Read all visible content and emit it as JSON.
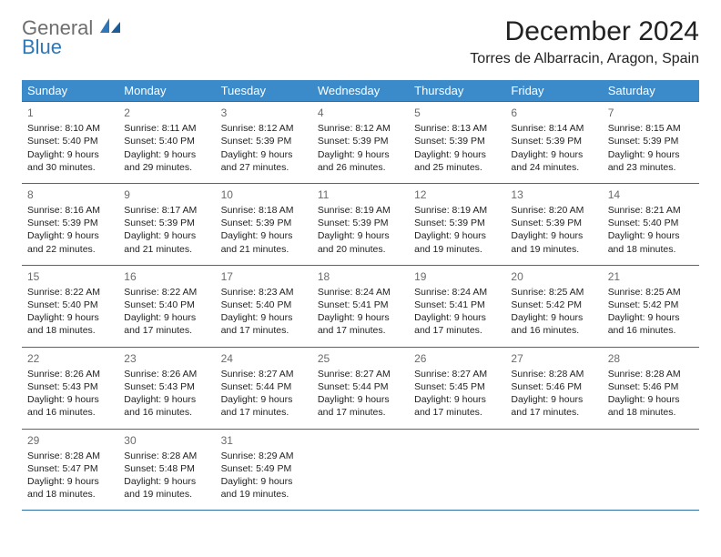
{
  "logo": {
    "general": "General",
    "blue": "Blue"
  },
  "title": "December 2024",
  "location": "Torres de Albarracin, Aragon, Spain",
  "header_bg": "#3b8bca",
  "rule_color": "#2f6fa5",
  "dow": [
    "Sunday",
    "Monday",
    "Tuesday",
    "Wednesday",
    "Thursday",
    "Friday",
    "Saturday"
  ],
  "weeks": [
    [
      {
        "n": "1",
        "sr": "Sunrise: 8:10 AM",
        "ss": "Sunset: 5:40 PM",
        "d1": "Daylight: 9 hours",
        "d2": "and 30 minutes."
      },
      {
        "n": "2",
        "sr": "Sunrise: 8:11 AM",
        "ss": "Sunset: 5:40 PM",
        "d1": "Daylight: 9 hours",
        "d2": "and 29 minutes."
      },
      {
        "n": "3",
        "sr": "Sunrise: 8:12 AM",
        "ss": "Sunset: 5:39 PM",
        "d1": "Daylight: 9 hours",
        "d2": "and 27 minutes."
      },
      {
        "n": "4",
        "sr": "Sunrise: 8:12 AM",
        "ss": "Sunset: 5:39 PM",
        "d1": "Daylight: 9 hours",
        "d2": "and 26 minutes."
      },
      {
        "n": "5",
        "sr": "Sunrise: 8:13 AM",
        "ss": "Sunset: 5:39 PM",
        "d1": "Daylight: 9 hours",
        "d2": "and 25 minutes."
      },
      {
        "n": "6",
        "sr": "Sunrise: 8:14 AM",
        "ss": "Sunset: 5:39 PM",
        "d1": "Daylight: 9 hours",
        "d2": "and 24 minutes."
      },
      {
        "n": "7",
        "sr": "Sunrise: 8:15 AM",
        "ss": "Sunset: 5:39 PM",
        "d1": "Daylight: 9 hours",
        "d2": "and 23 minutes."
      }
    ],
    [
      {
        "n": "8",
        "sr": "Sunrise: 8:16 AM",
        "ss": "Sunset: 5:39 PM",
        "d1": "Daylight: 9 hours",
        "d2": "and 22 minutes."
      },
      {
        "n": "9",
        "sr": "Sunrise: 8:17 AM",
        "ss": "Sunset: 5:39 PM",
        "d1": "Daylight: 9 hours",
        "d2": "and 21 minutes."
      },
      {
        "n": "10",
        "sr": "Sunrise: 8:18 AM",
        "ss": "Sunset: 5:39 PM",
        "d1": "Daylight: 9 hours",
        "d2": "and 21 minutes."
      },
      {
        "n": "11",
        "sr": "Sunrise: 8:19 AM",
        "ss": "Sunset: 5:39 PM",
        "d1": "Daylight: 9 hours",
        "d2": "and 20 minutes."
      },
      {
        "n": "12",
        "sr": "Sunrise: 8:19 AM",
        "ss": "Sunset: 5:39 PM",
        "d1": "Daylight: 9 hours",
        "d2": "and 19 minutes."
      },
      {
        "n": "13",
        "sr": "Sunrise: 8:20 AM",
        "ss": "Sunset: 5:39 PM",
        "d1": "Daylight: 9 hours",
        "d2": "and 19 minutes."
      },
      {
        "n": "14",
        "sr": "Sunrise: 8:21 AM",
        "ss": "Sunset: 5:40 PM",
        "d1": "Daylight: 9 hours",
        "d2": "and 18 minutes."
      }
    ],
    [
      {
        "n": "15",
        "sr": "Sunrise: 8:22 AM",
        "ss": "Sunset: 5:40 PM",
        "d1": "Daylight: 9 hours",
        "d2": "and 18 minutes."
      },
      {
        "n": "16",
        "sr": "Sunrise: 8:22 AM",
        "ss": "Sunset: 5:40 PM",
        "d1": "Daylight: 9 hours",
        "d2": "and 17 minutes."
      },
      {
        "n": "17",
        "sr": "Sunrise: 8:23 AM",
        "ss": "Sunset: 5:40 PM",
        "d1": "Daylight: 9 hours",
        "d2": "and 17 minutes."
      },
      {
        "n": "18",
        "sr": "Sunrise: 8:24 AM",
        "ss": "Sunset: 5:41 PM",
        "d1": "Daylight: 9 hours",
        "d2": "and 17 minutes."
      },
      {
        "n": "19",
        "sr": "Sunrise: 8:24 AM",
        "ss": "Sunset: 5:41 PM",
        "d1": "Daylight: 9 hours",
        "d2": "and 17 minutes."
      },
      {
        "n": "20",
        "sr": "Sunrise: 8:25 AM",
        "ss": "Sunset: 5:42 PM",
        "d1": "Daylight: 9 hours",
        "d2": "and 16 minutes."
      },
      {
        "n": "21",
        "sr": "Sunrise: 8:25 AM",
        "ss": "Sunset: 5:42 PM",
        "d1": "Daylight: 9 hours",
        "d2": "and 16 minutes."
      }
    ],
    [
      {
        "n": "22",
        "sr": "Sunrise: 8:26 AM",
        "ss": "Sunset: 5:43 PM",
        "d1": "Daylight: 9 hours",
        "d2": "and 16 minutes."
      },
      {
        "n": "23",
        "sr": "Sunrise: 8:26 AM",
        "ss": "Sunset: 5:43 PM",
        "d1": "Daylight: 9 hours",
        "d2": "and 16 minutes."
      },
      {
        "n": "24",
        "sr": "Sunrise: 8:27 AM",
        "ss": "Sunset: 5:44 PM",
        "d1": "Daylight: 9 hours",
        "d2": "and 17 minutes."
      },
      {
        "n": "25",
        "sr": "Sunrise: 8:27 AM",
        "ss": "Sunset: 5:44 PM",
        "d1": "Daylight: 9 hours",
        "d2": "and 17 minutes."
      },
      {
        "n": "26",
        "sr": "Sunrise: 8:27 AM",
        "ss": "Sunset: 5:45 PM",
        "d1": "Daylight: 9 hours",
        "d2": "and 17 minutes."
      },
      {
        "n": "27",
        "sr": "Sunrise: 8:28 AM",
        "ss": "Sunset: 5:46 PM",
        "d1": "Daylight: 9 hours",
        "d2": "and 17 minutes."
      },
      {
        "n": "28",
        "sr": "Sunrise: 8:28 AM",
        "ss": "Sunset: 5:46 PM",
        "d1": "Daylight: 9 hours",
        "d2": "and 18 minutes."
      }
    ],
    [
      {
        "n": "29",
        "sr": "Sunrise: 8:28 AM",
        "ss": "Sunset: 5:47 PM",
        "d1": "Daylight: 9 hours",
        "d2": "and 18 minutes."
      },
      {
        "n": "30",
        "sr": "Sunrise: 8:28 AM",
        "ss": "Sunset: 5:48 PM",
        "d1": "Daylight: 9 hours",
        "d2": "and 19 minutes."
      },
      {
        "n": "31",
        "sr": "Sunrise: 8:29 AM",
        "ss": "Sunset: 5:49 PM",
        "d1": "Daylight: 9 hours",
        "d2": "and 19 minutes."
      },
      null,
      null,
      null,
      null
    ]
  ]
}
